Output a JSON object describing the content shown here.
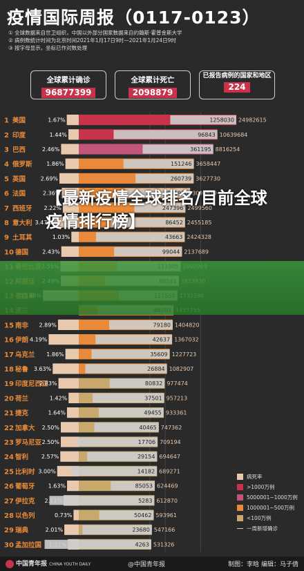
{
  "header": {
    "title": "疫情国际周报（0117-0123）",
    "notes": [
      "① 全球数据来自世卫组织，中国以外部分国家数据来自约翰斯·霍普金斯大学",
      "② 病例数统计时间为北京时间2021年1月17日9时—2021年1月24日9时",
      "③ 按字母显示，坐标已作对数处理"
    ]
  },
  "stats": [
    {
      "label": "全球累计确诊",
      "value": "96877399"
    },
    {
      "label": "全球累计死亡",
      "value": "2098879"
    },
    {
      "label": "已报告病例的国家和地区",
      "value": "224"
    }
  ],
  "overlay": {
    "text": "【最新疫情全球排名/目前全球疫情排行榜】"
  },
  "legend": [
    {
      "label": "病死率",
      "color": "#e9c9ae",
      "kind": "box"
    },
    {
      "label": ">1000万例",
      "color": "#c8324a",
      "kind": "box"
    },
    {
      "label": "5000001~1000万例",
      "color": "#c2557a",
      "kind": "box"
    },
    {
      "label": "1000001~500万例",
      "color": "#e88a3a",
      "kind": "box"
    },
    {
      "label": "<100万例",
      "color": "#c9a86b",
      "kind": "box"
    },
    {
      "label": "一周新增确诊",
      "color": "#cccccc",
      "kind": "line"
    }
  ],
  "footer": {
    "logo": "中国青年报",
    "logo_sub": "CHINA YOUTH DAILY",
    "watermark": "@中国青年报",
    "credit": "制图：李晗  编辑：马子倩"
  },
  "chart_data": {
    "type": "bar",
    "x_ticks": [
      "500000",
      "1000000",
      "5000000"
    ],
    "rows": [
      {
        "rank": "1",
        "country": "美国",
        "rate": "1.67%",
        "weekly": 1258030,
        "total": 24982615,
        "tier": "red"
      },
      {
        "rank": "2",
        "country": "印度",
        "rate": "1.44%",
        "weekly": 96843,
        "total": 10639684,
        "tier": "red"
      },
      {
        "rank": "3",
        "country": "巴西",
        "rate": "2.46%",
        "weekly": 361195,
        "total": 8816254,
        "tier": "pink"
      },
      {
        "rank": "4",
        "country": "俄罗斯",
        "rate": "1.86%",
        "weekly": 151246,
        "total": 3658447,
        "tier": "orange"
      },
      {
        "rank": "5",
        "country": "英国",
        "rate": "2.69%",
        "weekly": 260739,
        "total": 3627730,
        "tier": "orange"
      },
      {
        "rank": "6",
        "country": "法国",
        "rate": "2.36%",
        "weekly": 161936,
        "total": 3093619,
        "tier": "orange"
      },
      {
        "rank": "7",
        "country": "西班牙",
        "rate": "2.22%",
        "weekly": 247396,
        "total": 2499560,
        "tier": "orange"
      },
      {
        "rank": "8",
        "country": "意大利",
        "rate": "3.47%",
        "weekly": 86452,
        "total": 2455185,
        "tier": "orange"
      },
      {
        "rank": "9",
        "country": "土耳其",
        "rate": "1.03%",
        "weekly": 43663,
        "total": 2424328,
        "tier": "orange"
      },
      {
        "rank": "10",
        "country": "德国",
        "rate": "2.43%",
        "weekly": 99044,
        "total": 2137689,
        "tier": "orange"
      },
      {
        "rank": "11",
        "country": "哥伦比亚",
        "rate": "2.55%",
        "weekly": 111905,
        "total": 2002969,
        "tier": "orange"
      },
      {
        "rank": "12",
        "country": "阿根廷",
        "rate": "2.49%",
        "weekly": 66541,
        "total": 1853830,
        "tier": "orange"
      },
      {
        "rank": "13",
        "country": "墨西哥",
        "rate": "12.68%",
        "weekly": 122555,
        "total": 1732290,
        "tier": "orange"
      },
      {
        "rank": "14",
        "country": "波兰",
        "rate": "",
        "weekly": 46203,
        "total": 1457755,
        "tier": "orange"
      },
      {
        "rank": "15",
        "country": "南非",
        "rate": "2.89%",
        "weekly": 79180,
        "total": 1404820,
        "tier": "orange"
      },
      {
        "rank": "16",
        "country": "伊朗",
        "rate": "4.19%",
        "weekly": 42637,
        "total": 1367032,
        "tier": "orange"
      },
      {
        "rank": "17",
        "country": "乌克兰",
        "rate": "1.86%",
        "weekly": 35609,
        "total": 1227723,
        "tier": "orange"
      },
      {
        "rank": "18",
        "country": "秘鲁",
        "rate": "3.63%",
        "weekly": 26884,
        "total": 1082907,
        "tier": "orange"
      },
      {
        "rank": "19",
        "country": "印度尼西亚",
        "rate": "2.83%",
        "weekly": 80832,
        "total": 977474,
        "tier": "gold"
      },
      {
        "rank": "20",
        "country": "荷兰",
        "rate": "1.42%",
        "weekly": 37501,
        "total": 957213,
        "tier": "gold"
      },
      {
        "rank": "21",
        "country": "捷克",
        "rate": "1.64%",
        "weekly": 49455,
        "total": 933361,
        "tier": "gold"
      },
      {
        "rank": "22",
        "country": "加拿大",
        "rate": "2.50%",
        "weekly": 40465,
        "total": 747362,
        "tier": "gold"
      },
      {
        "rank": "23",
        "country": "罗马尼亚",
        "rate": "2.50%",
        "weekly": 17706,
        "total": 709194,
        "tier": "gold"
      },
      {
        "rank": "24",
        "country": "智利",
        "rate": "2.57%",
        "weekly": 29154,
        "total": 694647,
        "tier": "gold"
      },
      {
        "rank": "25",
        "country": "比利时",
        "rate": "3.00%",
        "weekly": 14182,
        "total": 689271,
        "tier": "gold"
      },
      {
        "rank": "26",
        "country": "葡萄牙",
        "rate": "1.63%",
        "weekly": 85053,
        "total": 624469,
        "tier": "gold"
      },
      {
        "rank": "27",
        "country": "伊拉克",
        "rate": "2.12%",
        "weekly": 5283,
        "total": 612870,
        "tier": "gold"
      },
      {
        "rank": "28",
        "country": "以色列",
        "rate": "0.73%",
        "weekly": 50462,
        "total": 593961,
        "tier": "gold"
      },
      {
        "rank": "29",
        "country": "瑞典",
        "rate": "2.01%",
        "weekly": 23680,
        "total": 547166,
        "tier": "gold"
      },
      {
        "rank": "30",
        "country": "孟加拉国",
        "rate": "1.51%",
        "weekly": 4263,
        "total": 531326,
        "tier": "gold"
      }
    ],
    "tier_colors": {
      "red": "#c8324a",
      "pink": "#c2557a",
      "orange": "#e88a3a",
      "gold": "#c9a86b"
    },
    "rate_color": "#e9c9ae",
    "weekly_color": "#cccccc",
    "x_scale": "log"
  }
}
